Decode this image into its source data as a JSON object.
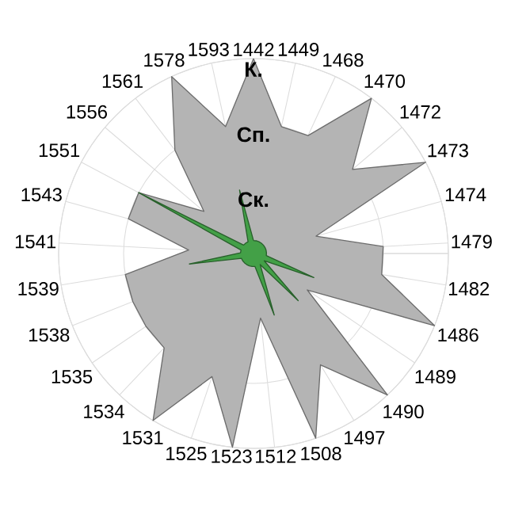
{
  "chart_data": {
    "type": "radar",
    "categories": [
      "1442",
      "1449",
      "1468",
      "1470",
      "1472",
      "1473",
      "1474",
      "1479",
      "1482",
      "1486",
      "1489",
      "1490",
      "1497",
      "1508",
      "1512",
      "1523",
      "1525",
      "1531",
      "1534",
      "1535",
      "1538",
      "1539",
      "1541",
      "1543",
      "1551",
      "1556",
      "1561",
      "1578",
      "1593"
    ],
    "ylim": [
      0,
      3
    ],
    "yticks": [
      {
        "value": 1,
        "label": "Ск."
      },
      {
        "value": 2,
        "label": "Сп."
      },
      {
        "value": 3,
        "label": "К."
      }
    ],
    "grid": true,
    "series": [
      {
        "color": "#b4b4b4",
        "values": [
          3,
          2,
          2,
          3,
          2,
          3,
          1,
          2,
          2,
          3,
          1,
          3,
          2,
          3,
          1,
          3,
          2,
          3,
          2,
          2,
          2,
          2,
          1,
          2,
          2,
          1,
          2,
          3,
          2
        ]
      },
      {
        "color": "#43a047",
        "values": [
          0.2,
          0.2,
          0.2,
          0.2,
          0.2,
          0.2,
          0.2,
          0.2,
          0.2,
          1,
          0.2,
          1,
          0.2,
          1,
          0.2,
          0.2,
          0.2,
          0.2,
          0.2,
          0.2,
          0.2,
          1,
          0.2,
          0.2,
          2,
          0.2,
          0.2,
          0.2,
          1
        ]
      }
    ]
  }
}
